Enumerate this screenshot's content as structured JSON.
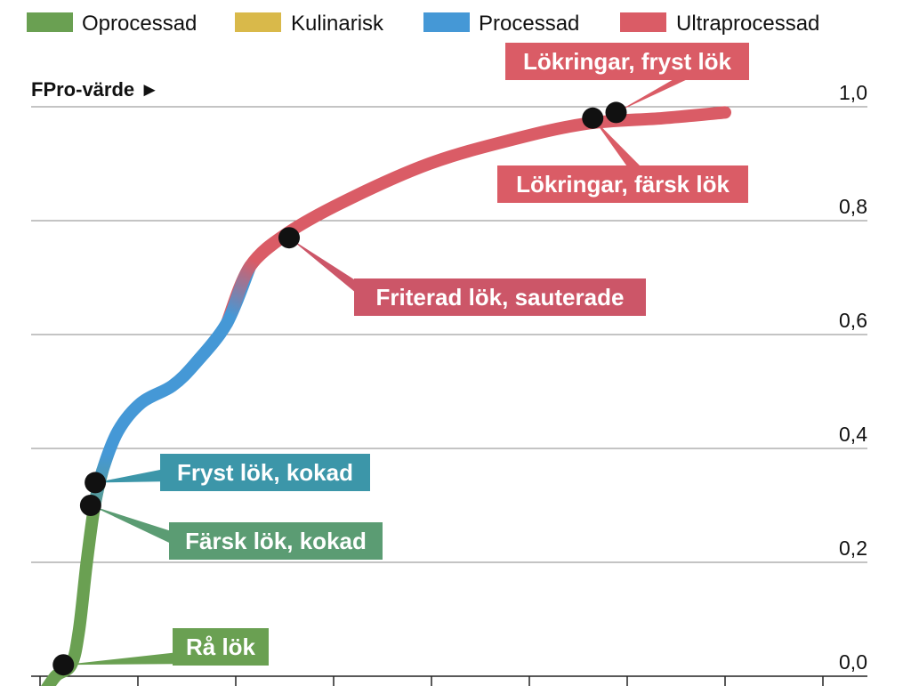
{
  "chart_data": {
    "type": "line",
    "ylabel": "FPro-värde ►",
    "ylim": [
      0,
      1.0
    ],
    "yticks": [
      {
        "value": 0.0,
        "label": "0,0"
      },
      {
        "value": 0.2,
        "label": "0,2"
      },
      {
        "value": 0.4,
        "label": "0,4"
      },
      {
        "value": 0.6,
        "label": "0,6"
      },
      {
        "value": 0.8,
        "label": "0,8"
      },
      {
        "value": 1.0,
        "label": "1,0"
      }
    ],
    "grid": true,
    "legend_position": "top",
    "legend": [
      {
        "name": "Oprocessad",
        "color": "#6aa052"
      },
      {
        "name": "Kulinarisk",
        "color": "#d9b94a"
      },
      {
        "name": "Processad",
        "color": "#4598d6"
      },
      {
        "name": "Ultraprocessad",
        "color": "#da5c66"
      }
    ],
    "curve": {
      "description_x_range": [
        0,
        1
      ],
      "points": [
        [
          0.0,
          -0.04
        ],
        [
          0.02,
          0.0
        ],
        [
          0.04,
          0.02
        ],
        [
          0.05,
          0.08
        ],
        [
          0.06,
          0.2
        ],
        [
          0.07,
          0.3
        ],
        [
          0.08,
          0.36
        ],
        [
          0.1,
          0.43
        ],
        [
          0.13,
          0.48
        ],
        [
          0.17,
          0.51
        ],
        [
          0.2,
          0.55
        ],
        [
          0.24,
          0.62
        ],
        [
          0.27,
          0.72
        ],
        [
          0.32,
          0.78
        ],
        [
          0.4,
          0.84
        ],
        [
          0.5,
          0.9
        ],
        [
          0.6,
          0.94
        ],
        [
          0.7,
          0.97
        ],
        [
          0.8,
          0.98
        ],
        [
          0.88,
          0.99
        ]
      ],
      "segments": [
        {
          "category": "Oprocessad",
          "from": 0.0,
          "to": 0.075
        },
        {
          "category": "Processad",
          "from": 0.075,
          "to": 0.255
        },
        {
          "category": "Ultraprocessad",
          "from": 0.255,
          "to": 0.88
        }
      ]
    },
    "annotations": [
      {
        "label": "Rå lök",
        "x": 0.03,
        "y": 0.02,
        "color": "#6aa052"
      },
      {
        "label": "Färsk lök, kokad",
        "x": 0.065,
        "y": 0.3,
        "color": "#5b9c73"
      },
      {
        "label": "Fryst lök, kokad",
        "x": 0.071,
        "y": 0.34,
        "color": "#3c96a9"
      },
      {
        "label": "Friterad lök, sauterade",
        "x": 0.32,
        "y": 0.77,
        "color": "#cc5668"
      },
      {
        "label": "Lökringar, färsk lök",
        "x": 0.71,
        "y": 0.98,
        "color": "#da5c66"
      },
      {
        "label": "Lökringar, fryst lök",
        "x": 0.74,
        "y": 0.99,
        "color": "#da5c66"
      }
    ]
  }
}
